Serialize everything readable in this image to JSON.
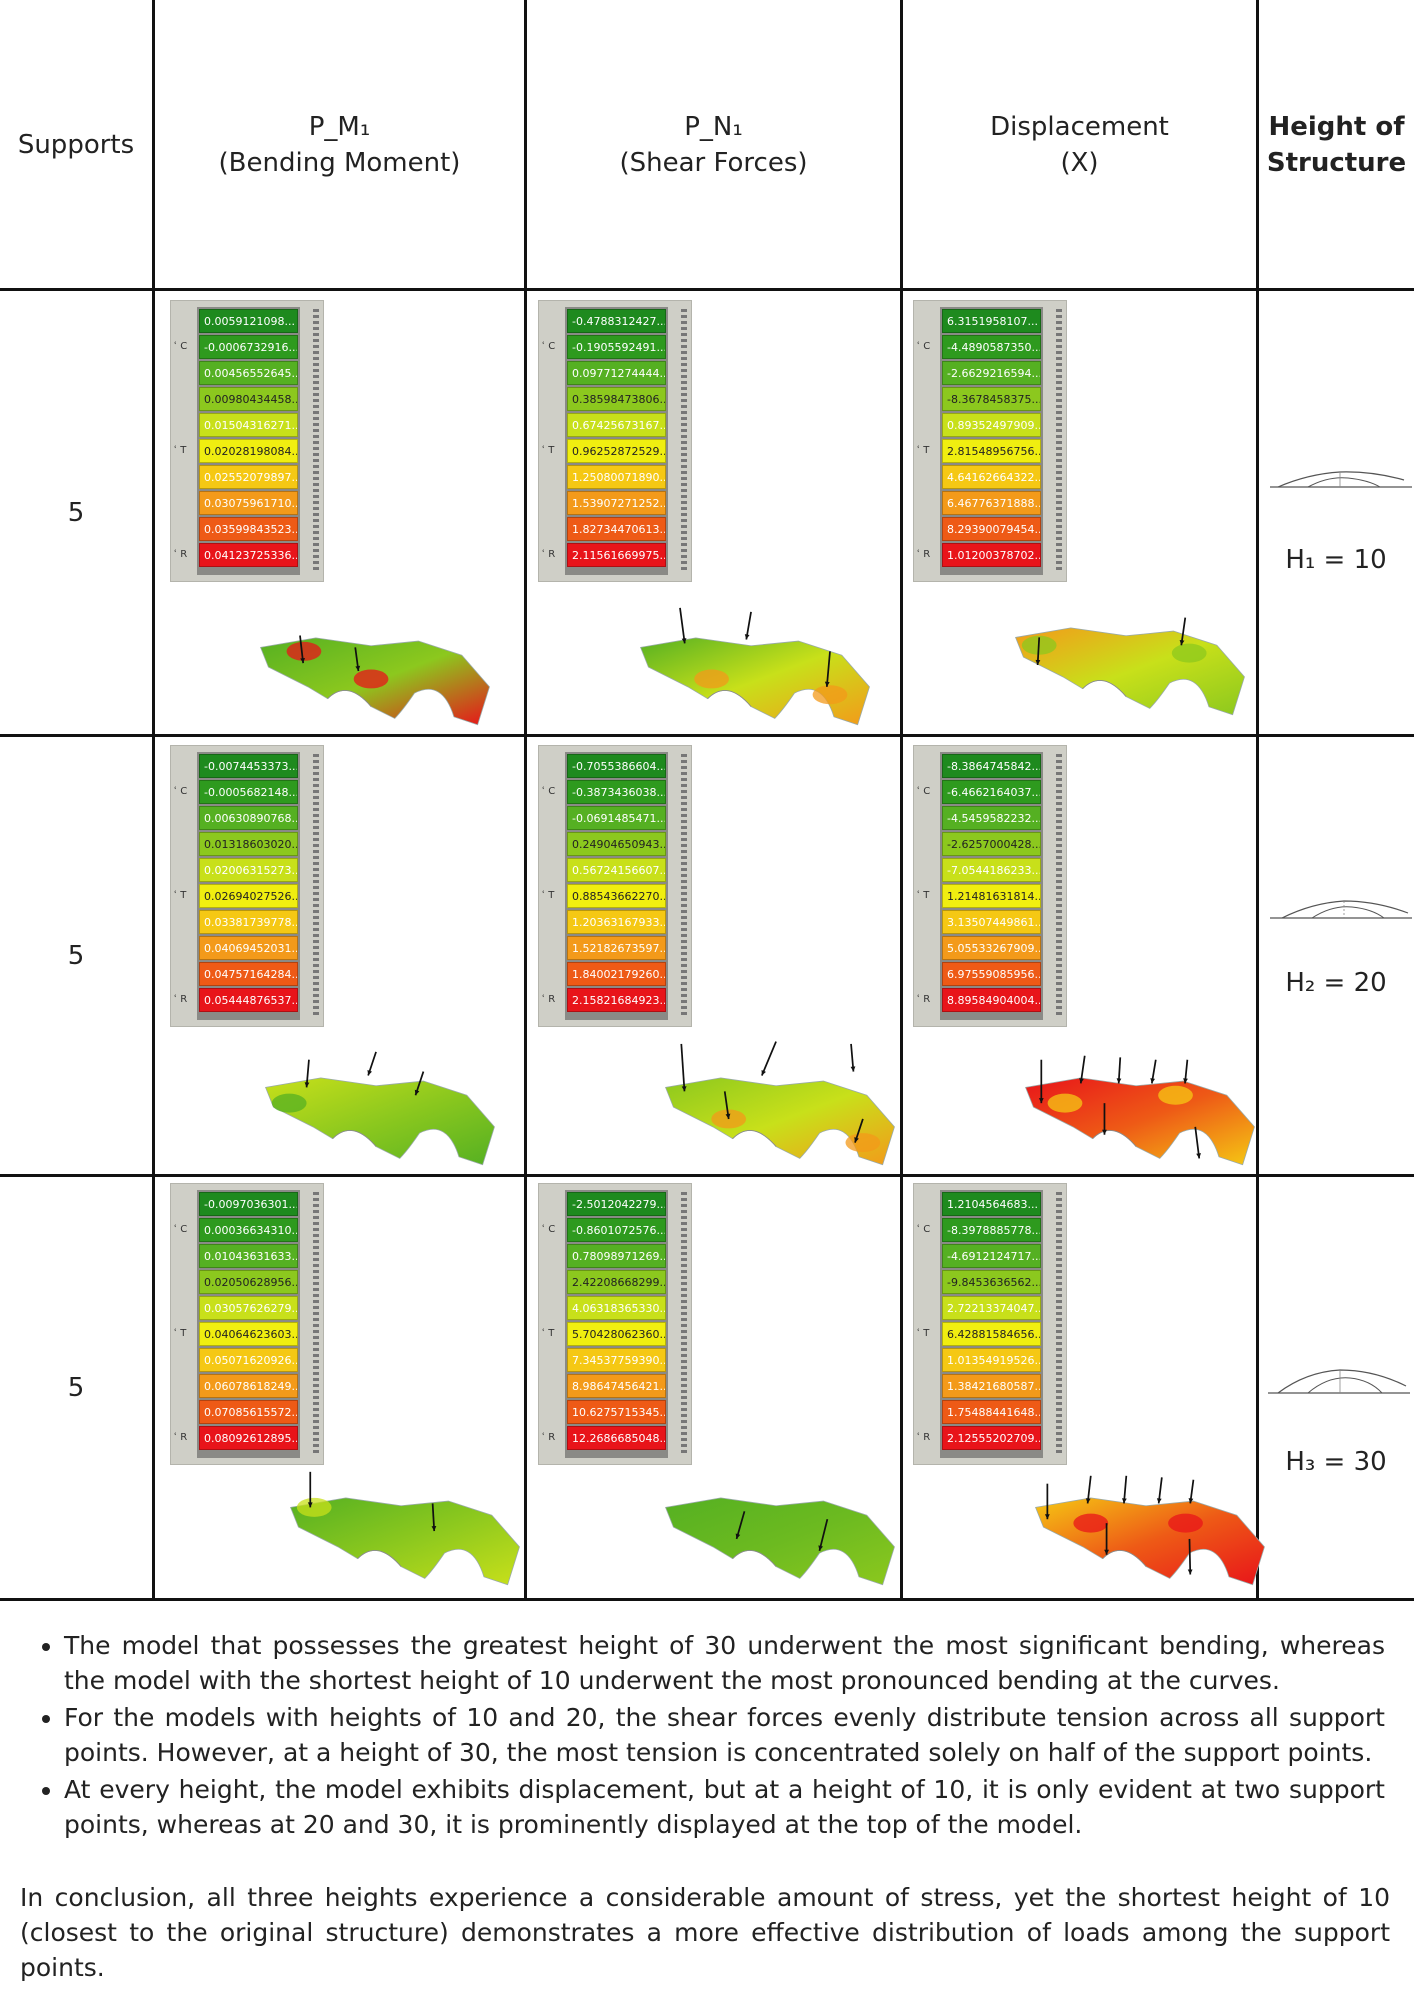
{
  "headers": {
    "supports": "Supports",
    "pm1": "P_M₁",
    "pm1_sub": "(Bending Moment)",
    "pn1": "P_N₁",
    "pn1_sub": "(Shear Forces)",
    "disp": "Displacement",
    "disp_sub": "(X)",
    "height_line1": "Height of",
    "height_line2": "Structure"
  },
  "rows": [
    {
      "supports": "5",
      "height": "H₁ = 10",
      "legends": {
        "moment": [
          "0.0059121098...",
          "-0.0006732916...",
          "0.00456552645...",
          "0.00980434458...",
          "0.01504316271...",
          "0.02028198084...",
          "0.02552079897...",
          "0.03075961710...",
          "0.03599843523...",
          "0.04123725336..."
        ],
        "shear": [
          "-0.4788312427...",
          "-0.1905592491...",
          "0.09771274444...",
          "0.38598473806...",
          "0.67425673167...",
          "0.96252872529...",
          "1.25080071890...",
          "1.53907271252...",
          "1.82734470613...",
          "2.11561669975..."
        ],
        "displacement": [
          "6.3151958107...",
          "-4.4890587350...",
          "-2.6629216594...",
          "-8.3678458375...",
          "0.89352497909...",
          "2.81548956756...",
          "4.64162664322...",
          "6.46776371888...",
          "8.29390079454...",
          "1.01200378702..."
        ]
      }
    },
    {
      "supports": "5",
      "height": "H₂ = 20",
      "legends": {
        "moment": [
          "-0.0074453373...",
          "-0.0005682148...",
          "0.00630890768...",
          "0.01318603020...",
          "0.02006315273...",
          "0.02694027526...",
          "0.03381739778...",
          "0.04069452031...",
          "0.04757164284...",
          "0.05444876537..."
        ],
        "shear": [
          "-0.7055386604...",
          "-0.3873436038...",
          "-0.0691485471...",
          "0.24904650943...",
          "0.56724156607...",
          "0.88543662270...",
          "1.20363167933...",
          "1.52182673597...",
          "1.84002179260...",
          "2.15821684923..."
        ],
        "displacement": [
          "-8.3864745842...",
          "-6.4662164037...",
          "-4.5459582232...",
          "-2.6257000428...",
          "-7.0544186233...",
          "1.21481631814...",
          "3.13507449861...",
          "5.05533267909...",
          "6.97559085956...",
          "8.89584904004..."
        ]
      }
    },
    {
      "supports": "5",
      "height": "H₃ = 30",
      "legends": {
        "moment": [
          "-0.0097036301...",
          "0.00036634310...",
          "0.01043631633...",
          "0.02050628956...",
          "0.03057626279...",
          "0.04064623603...",
          "0.05071620926...",
          "0.06078618249...",
          "0.07085615572...",
          "0.08092612895..."
        ],
        "shear": [
          "-2.5012042279...",
          "-0.8601072576...",
          "0.78098971269...",
          "2.42208668299...",
          "4.06318365330...",
          "5.70428062360...",
          "7.34537759390...",
          "8.98647456421...",
          "10.6275715345...",
          "12.2686685048..."
        ],
        "displacement": [
          "1.2104564683...",
          "-8.3978885778...",
          "-4.6912124717...",
          "-9.8453636562...",
          "2.72213374047...",
          "6.42881584656...",
          "1.01354919526...",
          "1.38421680587...",
          "1.75488441648...",
          "2.12555202709..."
        ]
      }
    }
  ],
  "legend_axis_labels": [
    "C",
    "T",
    "R"
  ],
  "legend_colors": [
    "#1e8a1e",
    "#2e9a1e",
    "#55b022",
    "#8cc81e",
    "#c8e01a",
    "#f0ee10",
    "#f5c814",
    "#f39a1a",
    "#ee5a16",
    "#e8141a"
  ],
  "notes": [
    "The model that possesses the greatest height of 30 underwent the most significant bending, whereas the model with the shortest height of 10 underwent the most pronounced bending at the curves.",
    "For the models with heights of 10 and 20, the shear forces evenly distribute tension across all support points. However, at a height of 30, the most tension is concentrated solely on half of the support points.",
    "At every height, the model exhibits displacement, but at a height of 10, it is only evident at two support points, whereas at 20 and 30, it is prominently displayed at the top of the model."
  ],
  "conclusion": "In conclusion, all three heights experience a considerable amount of stress, yet the shortest height of 10 (closest to the original structure) demonstrates a more effective distribution of loads among the support points."
}
